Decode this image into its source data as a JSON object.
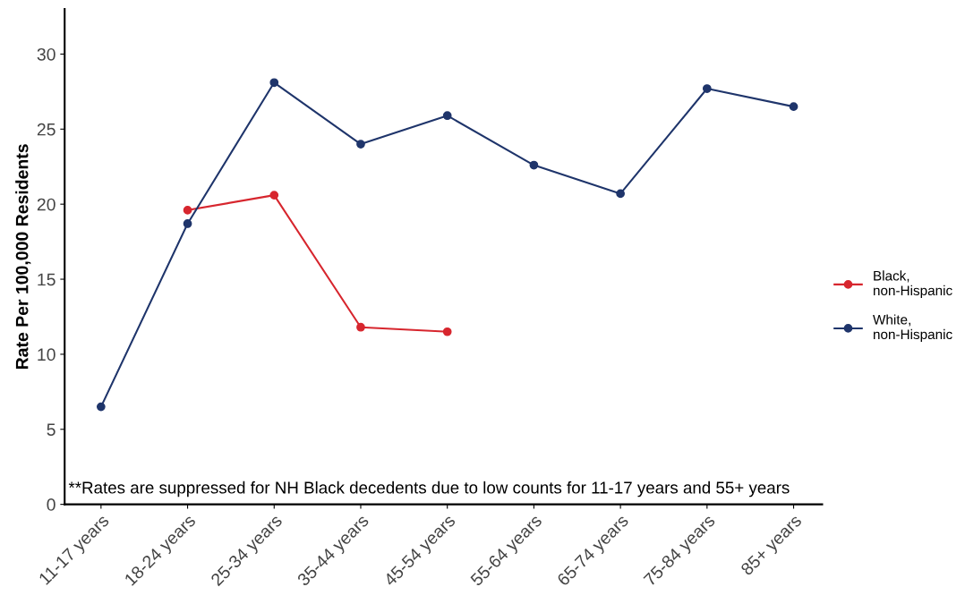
{
  "chart_data": {
    "type": "line",
    "ylabel": "Rate Per 100,000 Residents",
    "categories": [
      "11-17 years",
      "18-24 years",
      "25-34 years",
      "35-44 years",
      "45-54 years",
      "55-64 years",
      "65-74 years",
      "75-84 years",
      "85+ years"
    ],
    "series": [
      {
        "name": "Black,\nnon-Hispanic",
        "color": "#d7262e",
        "values": [
          null,
          19.6,
          20.6,
          11.8,
          11.5,
          null,
          null,
          null,
          null
        ]
      },
      {
        "name": "White,\nnon-Hispanic",
        "color": "#1f356b",
        "values": [
          6.5,
          18.7,
          28.1,
          24.0,
          25.9,
          22.6,
          20.7,
          27.7,
          26.5
        ]
      }
    ],
    "ylim": [
      0,
      33
    ],
    "yticks": [
      0,
      5,
      10,
      15,
      20,
      25,
      30
    ],
    "grid": false,
    "legend": "right",
    "marker": "circle",
    "line_style": "solid",
    "annotations": [
      "**Rates are suppressed for NH Black decedents due to low counts for 11-17 years and 55+ years"
    ]
  }
}
